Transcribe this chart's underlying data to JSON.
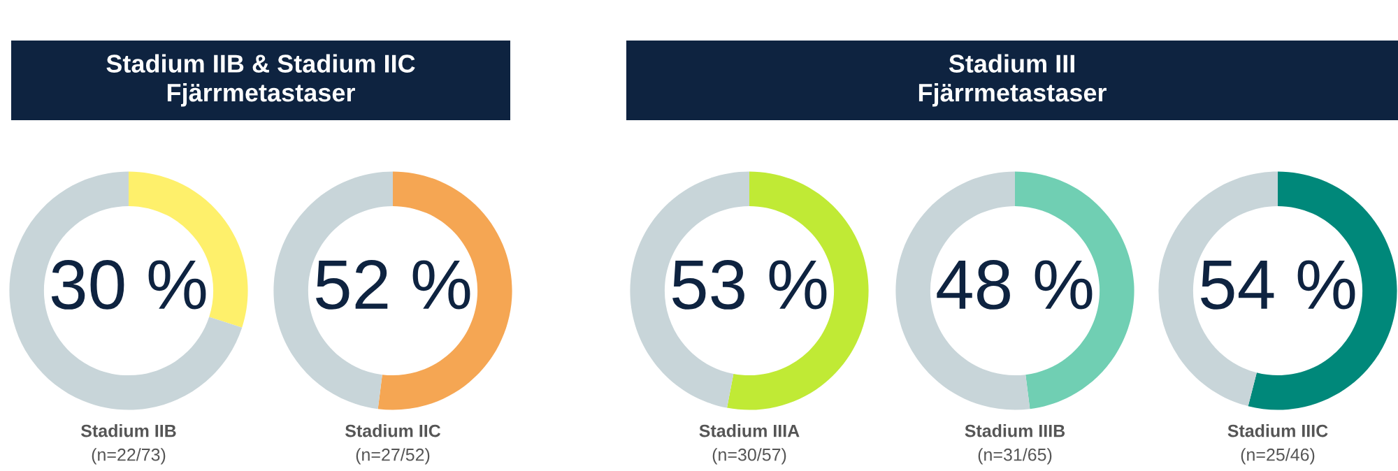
{
  "chart_data": [
    {
      "type": "donut",
      "title": "Stadium IIB & Stadium IIC\nFjärrmetastaser",
      "categories": [
        null,
        null
      ],
      "values": [
        30,
        70
      ],
      "colors": [
        "#fef06b",
        "#c8d5d9"
      ],
      "value_labels": [
        "30 %",
        null
      ],
      "xlabel": "Stadium IIB",
      "annotations": [
        "(n=22/73)"
      ]
    },
    {
      "type": "donut",
      "categories": [
        null,
        null
      ],
      "values": [
        52,
        48
      ],
      "colors": [
        "#f5a653",
        "#c8d5d9"
      ],
      "value_labels": [
        "52 %",
        null
      ],
      "xlabel": "Stadium IIC",
      "annotations": [
        "(n=27/52)"
      ]
    },
    {
      "type": "donut",
      "categories": [
        null,
        null
      ],
      "values": [
        53,
        47
      ],
      "colors": [
        "#c0ea35",
        "#c8d5d9"
      ],
      "value_labels": [
        "53 %",
        null
      ],
      "xlabel": "Stadium IIIA",
      "annotations": [
        "(n=30/57)"
      ]
    },
    {
      "type": "donut",
      "title": "Stadium III\nFjärrmetastaser",
      "categories": [
        null,
        null
      ],
      "values": [
        48,
        52
      ],
      "colors": [
        "#70cfb3",
        "#c8d5d9"
      ],
      "value_labels": [
        "48 %",
        null
      ],
      "xlabel": "Stadium IIIB",
      "annotations": [
        "(n=31/65)"
      ]
    },
    {
      "type": "donut",
      "categories": [
        null,
        null
      ],
      "values": [
        54,
        46
      ],
      "colors": [
        "#00887a",
        "#c8d5d9"
      ],
      "value_labels": [
        "54 %",
        null
      ],
      "xlabel": "Stadium IIIC",
      "annotations": [
        "(n=25/46)"
      ]
    }
  ]
}
